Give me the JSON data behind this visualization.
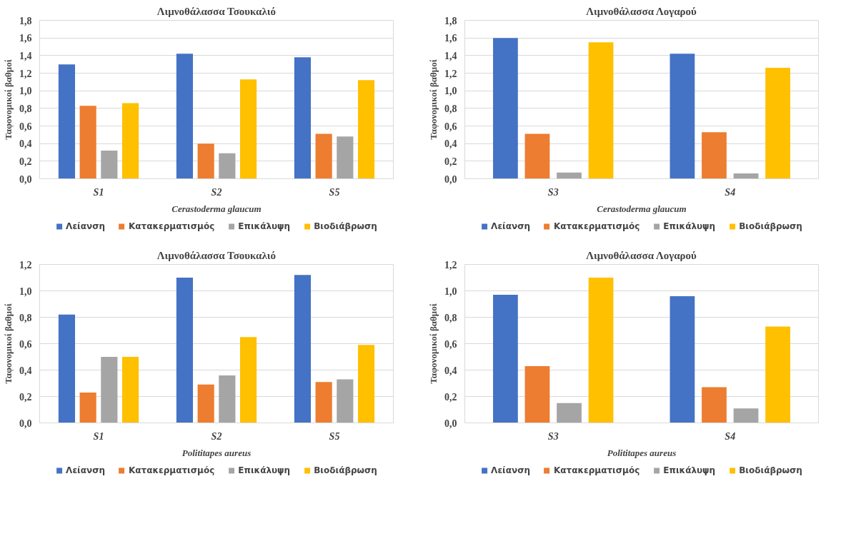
{
  "chart_data": [
    {
      "type": "bar",
      "title": "Λιμνοθάλασσα Τσουκαλιό",
      "xlabel": "Cerastoderma glaucum",
      "ylabel": "Ταφονομικοί βαθμοί",
      "categories": [
        "S1",
        "S2",
        "S5"
      ],
      "series": [
        {
          "name": "Λείανση",
          "color": "#4472c4",
          "values": [
            1.3,
            1.42,
            1.38
          ]
        },
        {
          "name": "Κατακερματισμός",
          "color": "#ed7d31",
          "values": [
            0.83,
            0.4,
            0.51
          ]
        },
        {
          "name": "Επικάλυψη",
          "color": "#a5a5a5",
          "values": [
            0.32,
            0.29,
            0.48
          ]
        },
        {
          "name": "Βιοδιάβρωση",
          "color": "#ffc000",
          "values": [
            0.86,
            1.13,
            1.12
          ]
        }
      ],
      "ylim": [
        0,
        1.8
      ],
      "yticks": [
        {
          "value": 0,
          "label": "0,0"
        },
        {
          "value": 0.2,
          "label": "0,2"
        },
        {
          "value": 0.4,
          "label": "0,4"
        },
        {
          "value": 0.6,
          "label": "0,6"
        },
        {
          "value": 0.8,
          "label": "0,8"
        },
        {
          "value": 1.0,
          "label": "1,0"
        },
        {
          "value": 1.2,
          "label": "1,2"
        },
        {
          "value": 1.4,
          "label": "1,4"
        },
        {
          "value": 1.6,
          "label": "1,6"
        },
        {
          "value": 1.8,
          "label": "1,8"
        }
      ],
      "grid": "y",
      "legend": "bottom"
    },
    {
      "type": "bar",
      "title": "Λιμνοθάλασσα Λογαρού",
      "xlabel": "Cerastoderma glaucum",
      "ylabel": "Ταφονομικοί βαθμοί",
      "categories": [
        "S3",
        "S4"
      ],
      "series": [
        {
          "name": "Λείανση",
          "color": "#4472c4",
          "values": [
            1.6,
            1.42
          ]
        },
        {
          "name": "Κατακερματισμός",
          "color": "#ed7d31",
          "values": [
            0.51,
            0.53
          ]
        },
        {
          "name": "Επικάλυψη",
          "color": "#a5a5a5",
          "values": [
            0.07,
            0.06
          ]
        },
        {
          "name": "Βιοδιάβρωση",
          "color": "#ffc000",
          "values": [
            1.55,
            1.26
          ]
        }
      ],
      "ylim": [
        0,
        1.8
      ],
      "yticks": [
        {
          "value": 0,
          "label": "0,0"
        },
        {
          "value": 0.2,
          "label": "0,2"
        },
        {
          "value": 0.4,
          "label": "0,4"
        },
        {
          "value": 0.6,
          "label": "0,6"
        },
        {
          "value": 0.8,
          "label": "0,8"
        },
        {
          "value": 1.0,
          "label": "1,0"
        },
        {
          "value": 1.2,
          "label": "1,2"
        },
        {
          "value": 1.4,
          "label": "1,4"
        },
        {
          "value": 1.6,
          "label": "1,6"
        },
        {
          "value": 1.8,
          "label": "1,8"
        }
      ],
      "grid": "y",
      "legend": "bottom"
    },
    {
      "type": "bar",
      "title": "Λιμνοθάλασσα Τσουκαλιό",
      "xlabel": "Polititapes aureus",
      "ylabel": "Ταφονομικοί βαθμοί",
      "categories": [
        "S1",
        "S2",
        "S5"
      ],
      "series": [
        {
          "name": "Λείανση",
          "color": "#4472c4",
          "values": [
            0.82,
            1.1,
            1.12
          ]
        },
        {
          "name": "Κατακερματισμός",
          "color": "#ed7d31",
          "values": [
            0.23,
            0.29,
            0.31
          ]
        },
        {
          "name": "Επικάλυψη",
          "color": "#a5a5a5",
          "values": [
            0.5,
            0.36,
            0.33
          ]
        },
        {
          "name": "Βιοδιάβρωση",
          "color": "#ffc000",
          "values": [
            0.5,
            0.65,
            0.59
          ]
        }
      ],
      "ylim": [
        0,
        1.2
      ],
      "yticks": [
        {
          "value": 0,
          "label": "0,0"
        },
        {
          "value": 0.2,
          "label": "0,2"
        },
        {
          "value": 0.4,
          "label": "0,4"
        },
        {
          "value": 0.6,
          "label": "0,6"
        },
        {
          "value": 0.8,
          "label": "0,8"
        },
        {
          "value": 1.0,
          "label": "1,0"
        },
        {
          "value": 1.2,
          "label": "1,2"
        }
      ],
      "grid": "y",
      "legend": "bottom"
    },
    {
      "type": "bar",
      "title": "Λιμνοθάλασσα Λογαρού",
      "xlabel": "Polititapes aureus",
      "ylabel": "Ταφονομικοί βαθμοί",
      "categories": [
        "S3",
        "S4"
      ],
      "series": [
        {
          "name": "Λείανση",
          "color": "#4472c4",
          "values": [
            0.97,
            0.96
          ]
        },
        {
          "name": "Κατακερματισμός",
          "color": "#ed7d31",
          "values": [
            0.43,
            0.27
          ]
        },
        {
          "name": "Επικάλυψη",
          "color": "#a5a5a5",
          "values": [
            0.15,
            0.11
          ]
        },
        {
          "name": "Βιοδιάβρωση",
          "color": "#ffc000",
          "values": [
            1.1,
            0.73
          ]
        }
      ],
      "ylim": [
        0,
        1.2
      ],
      "yticks": [
        {
          "value": 0,
          "label": "0,0"
        },
        {
          "value": 0.2,
          "label": "0,2"
        },
        {
          "value": 0.4,
          "label": "0,4"
        },
        {
          "value": 0.6,
          "label": "0,6"
        },
        {
          "value": 0.8,
          "label": "0,8"
        },
        {
          "value": 1.0,
          "label": "1,0"
        },
        {
          "value": 1.2,
          "label": "1,2"
        }
      ],
      "grid": "y",
      "legend": "bottom"
    }
  ]
}
